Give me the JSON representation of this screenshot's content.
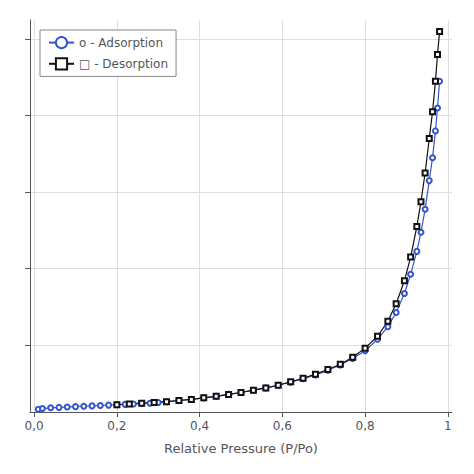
{
  "chart_data": {
    "type": "line",
    "xlabel": "Relative Pressure (P/Po)",
    "xlim": [
      -0.01,
      1.01
    ],
    "xticks": [
      {
        "value": 0.0,
        "label": "0,0"
      },
      {
        "value": 0.2,
        "label": "0,2"
      },
      {
        "value": 0.4,
        "label": "0,4"
      },
      {
        "value": 0.6,
        "label": "0,6"
      },
      {
        "value": 0.8,
        "label": "0,8"
      },
      1
    ],
    "ylim": [
      25,
      1050
    ],
    "yticks": [
      200,
      400,
      600,
      800,
      1000
    ],
    "tick_labels": "x",
    "grid": true,
    "legend": "upper left",
    "series": [
      {
        "name": "o - Adsorption",
        "color": "#3355cc",
        "marker": "circle",
        "line_style": "solid",
        "x": [
          0.01,
          0.02,
          0.04,
          0.06,
          0.08,
          0.1,
          0.12,
          0.14,
          0.16,
          0.18,
          0.2,
          0.22,
          0.24,
          0.26,
          0.28,
          0.3,
          0.32,
          0.35,
          0.38,
          0.41,
          0.44,
          0.47,
          0.5,
          0.53,
          0.56,
          0.59,
          0.62,
          0.65,
          0.68,
          0.71,
          0.74,
          0.77,
          0.8,
          0.83,
          0.855,
          0.875,
          0.895,
          0.91,
          0.925,
          0.935,
          0.945,
          0.955,
          0.963,
          0.97,
          0.975,
          0.98
        ],
        "values": [
          32,
          34,
          36,
          37,
          38,
          39,
          40,
          41,
          42,
          43,
          44,
          45,
          46,
          47,
          48,
          50,
          52,
          55,
          58,
          62,
          66,
          71,
          76,
          82,
          88,
          95,
          103,
          112,
          122,
          134,
          148,
          165,
          185,
          215,
          248,
          285,
          335,
          385,
          445,
          495,
          555,
          630,
          690,
          760,
          820,
          890
        ]
      },
      {
        "name": "□ - Desorption",
        "color": "#111111",
        "marker": "square",
        "line_style": "solid",
        "x": [
          0.2,
          0.23,
          0.26,
          0.29,
          0.32,
          0.35,
          0.38,
          0.41,
          0.44,
          0.47,
          0.5,
          0.53,
          0.56,
          0.59,
          0.62,
          0.65,
          0.68,
          0.71,
          0.74,
          0.77,
          0.8,
          0.83,
          0.855,
          0.875,
          0.895,
          0.91,
          0.925,
          0.935,
          0.945,
          0.955,
          0.963,
          0.97,
          0.975,
          0.98
        ],
        "values": [
          44,
          46,
          48,
          50,
          52,
          55,
          58,
          62,
          66,
          71,
          76,
          82,
          88,
          95,
          104,
          113,
          124,
          136,
          150,
          168,
          192,
          223,
          262,
          308,
          368,
          430,
          510,
          575,
          650,
          740,
          810,
          890,
          960,
          1020
        ]
      }
    ]
  }
}
